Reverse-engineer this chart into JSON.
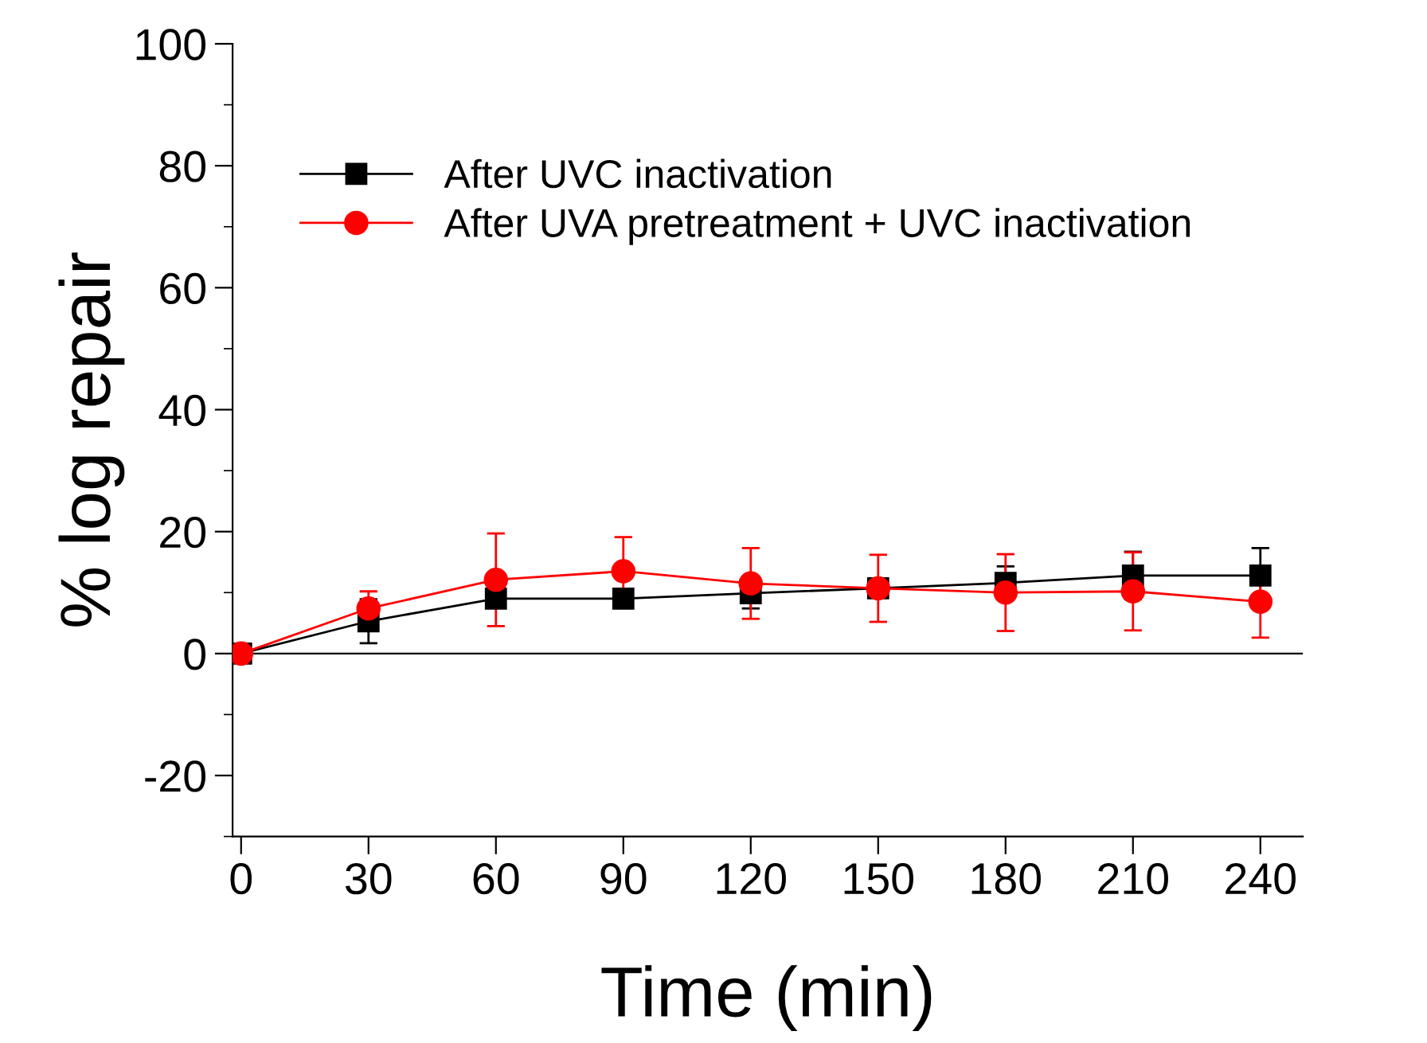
{
  "chart_data": {
    "type": "line",
    "xlabel": "Time (min)",
    "ylabel": "% log repair",
    "x": [
      0,
      30,
      60,
      90,
      120,
      150,
      180,
      210,
      240
    ],
    "series": [
      {
        "name": "After UVC inactivation",
        "color": "#000000",
        "marker": "square",
        "values": [
          0,
          5.3,
          9.0,
          9.0,
          9.9,
          10.7,
          11.6,
          12.8,
          12.8
        ],
        "errors": [
          null,
          3.6,
          1.5,
          1.0,
          2.5,
          0.5,
          2.7,
          3.9,
          4.5
        ]
      },
      {
        "name": "After UVA pretreatment + UVC inactivation",
        "color": "#ff0000",
        "marker": "circle",
        "values": [
          0,
          7.4,
          12.1,
          13.5,
          11.5,
          10.7,
          10.0,
          10.2,
          8.5
        ],
        "errors": [
          null,
          2.8,
          7.6,
          5.6,
          5.8,
          5.5,
          6.3,
          6.4,
          5.9
        ]
      }
    ],
    "xlim": [
      -2,
      250
    ],
    "xticks": [
      0,
      30,
      60,
      90,
      120,
      150,
      180,
      210,
      240
    ],
    "ylim": [
      -30,
      100
    ],
    "yticks": [
      -20,
      0,
      20,
      40,
      60,
      80,
      100
    ],
    "ref_lines": [
      {
        "axis": "y",
        "value": 0,
        "color": "#000000"
      }
    ],
    "legend": "top left",
    "grid": false,
    "line_style": "solid"
  }
}
